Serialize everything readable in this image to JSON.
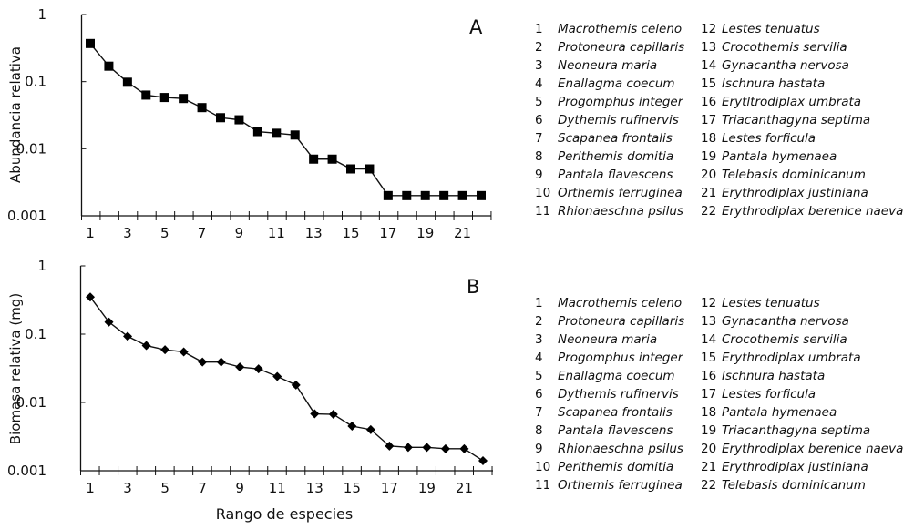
{
  "chart_data": [
    {
      "type": "line",
      "panel_label": "A",
      "ylabel": "Abundancia relativa",
      "xlabel": "",
      "yscale": "log",
      "ylim": [
        0.001,
        1
      ],
      "yticks": [
        "1",
        "0.1",
        "0.01",
        "0.001"
      ],
      "xlim": [
        1,
        22
      ],
      "xticks": [
        "1",
        "3",
        "5",
        "7",
        "9",
        "11",
        "13",
        "15",
        "17",
        "19",
        "21"
      ],
      "marker": "square",
      "x": [
        1,
        2,
        3,
        4,
        5,
        6,
        7,
        8,
        9,
        10,
        11,
        12,
        13,
        14,
        15,
        16,
        17,
        18,
        19,
        20,
        21,
        22
      ],
      "values": [
        0.37,
        0.17,
        0.098,
        0.063,
        0.058,
        0.056,
        0.041,
        0.029,
        0.027,
        0.018,
        0.017,
        0.016,
        0.007,
        0.007,
        0.005,
        0.005,
        0.002,
        0.002,
        0.002,
        0.002,
        0.002,
        0.002
      ],
      "legend": [
        "Macrothemis celeno",
        "Protoneura capillaris",
        "Neoneura maria",
        "Enallagma coecum",
        "Progomphus integer",
        "Dythemis rufinervis",
        "Scapanea frontalis",
        "Perithemis domitia",
        "Pantala flavescens",
        "Orthemis ferruginea",
        "Rhionaeschna psilus",
        "Lestes tenuatus",
        "Crocothemis servilia",
        "Gynacantha nervosa",
        "Ischnura hastata",
        "Erytltrodiplax umbrata",
        "Triacanthagyna septima",
        "Lestes forficula",
        "Pantala hymenaea",
        "Telebasis dominicanum",
        "Erythrodiplax justiniana",
        "Erythrodiplax berenice naeva"
      ]
    },
    {
      "type": "line",
      "panel_label": "B",
      "ylabel": "Biomasa relativa (mg)",
      "xlabel": "Rango de especies",
      "yscale": "log",
      "ylim": [
        0.001,
        1
      ],
      "yticks": [
        "1",
        "0.1",
        "0.01",
        "0.001"
      ],
      "xlim": [
        1,
        22
      ],
      "xticks": [
        "1",
        "3",
        "5",
        "7",
        "9",
        "11",
        "13",
        "15",
        "17",
        "19",
        "21"
      ],
      "marker": "diamond",
      "x": [
        1,
        2,
        3,
        4,
        5,
        6,
        7,
        8,
        9,
        10,
        11,
        12,
        13,
        14,
        15,
        16,
        17,
        18,
        19,
        20,
        21,
        22
      ],
      "values": [
        0.35,
        0.15,
        0.093,
        0.068,
        0.059,
        0.055,
        0.039,
        0.039,
        0.033,
        0.031,
        0.024,
        0.018,
        0.0068,
        0.0067,
        0.0045,
        0.004,
        0.0023,
        0.0022,
        0.0022,
        0.0021,
        0.0021,
        0.0014
      ],
      "legend": [
        "Macrothemis celeno",
        "Protoneura capillaris",
        "Neoneura maria",
        "Progomphus integer",
        "Enallagma coecum",
        "Dythemis rufinervis",
        "Scapanea frontalis",
        "Pantala flavescens",
        "Rhionaeschna psilus",
        "Perithemis domitia",
        "Orthemis ferruginea",
        "Lestes tenuatus",
        "Gynacantha nervosa",
        "Crocothemis servilia",
        "Erythrodiplax umbrata",
        "Ischnura hastata",
        "Lestes forficula",
        "Pantala hymenaea",
        "Triacanthagyna septima",
        "Erythrodiplax berenice naeva",
        "Erythrodiplax justiniana",
        "Telebasis dominicanum"
      ]
    }
  ],
  "colors": {
    "line": "#111111",
    "marker": "#000000",
    "background": "#ffffff"
  }
}
